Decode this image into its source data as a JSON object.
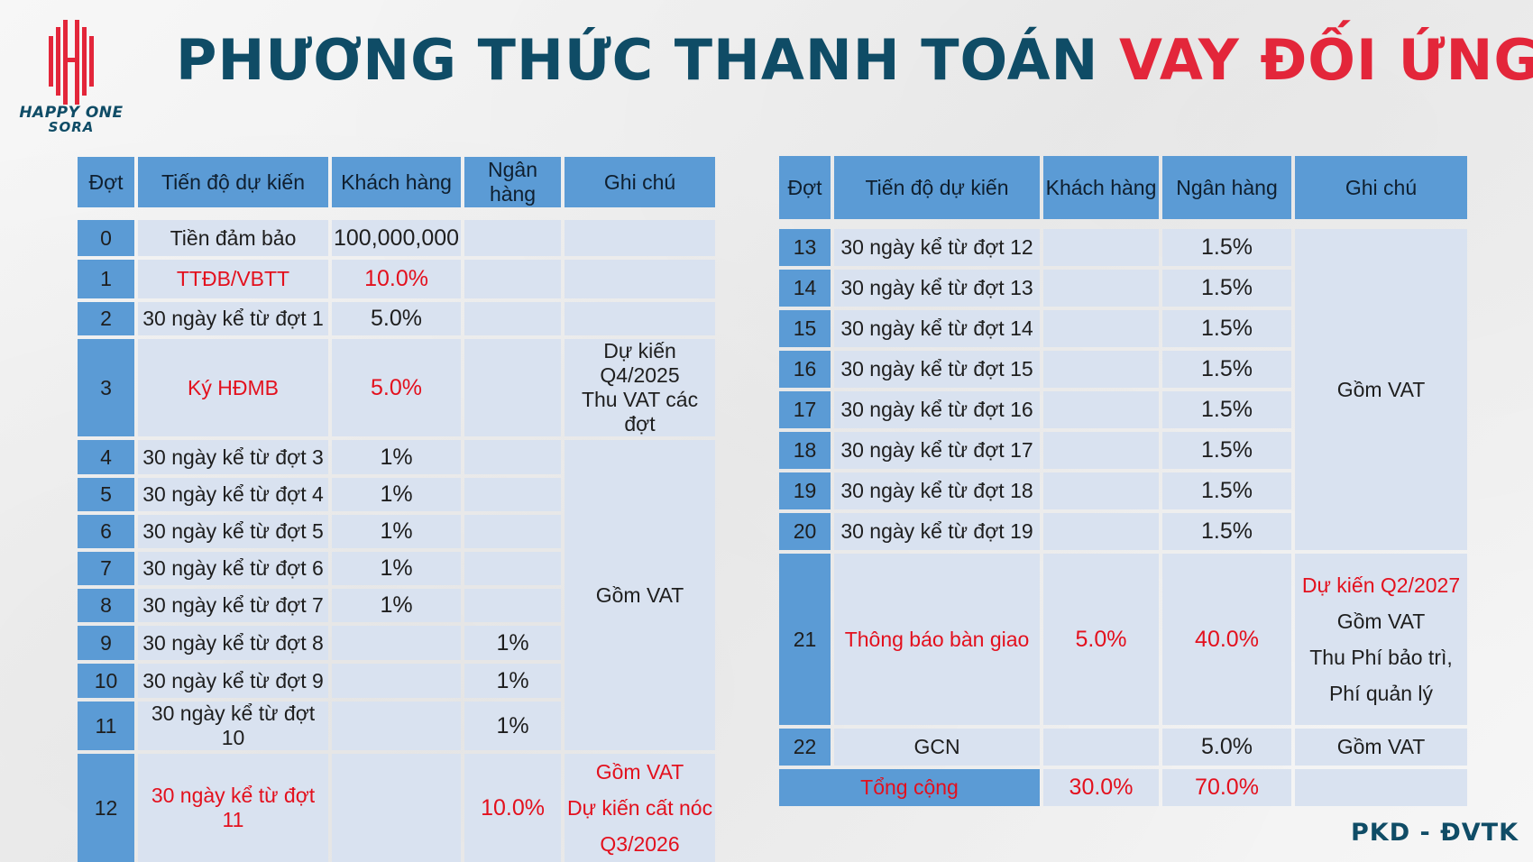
{
  "brand": {
    "name": "HAPPY ONE",
    "sub": "SORA",
    "accent": "#0f4c66",
    "red": "#e3263a"
  },
  "title": {
    "part1": "PHƯƠNG THỨC THANH TOÁN",
    "part2": "VAY ĐỐI ỨNG"
  },
  "headers": [
    "Đợt",
    "Tiến độ dự kiến",
    "Khách hàng",
    "Ngân hàng",
    "Ghi chú"
  ],
  "left": {
    "rows": [
      {
        "dot": "0",
        "tien_do": "Tiền đảm bảo",
        "khach_hang": "100,000,000",
        "ngan_hang": ""
      },
      {
        "dot": "1",
        "tien_do": "TTĐB/VBTT",
        "khach_hang": "10.0%",
        "ngan_hang": ""
      },
      {
        "dot": "2",
        "tien_do": "30 ngày kể từ đợt 1",
        "khach_hang": "5.0%",
        "ngan_hang": ""
      },
      {
        "dot": "3",
        "tien_do": "Ký HĐMB",
        "khach_hang": "5.0%",
        "ngan_hang": ""
      },
      {
        "dot": "4",
        "tien_do": "30 ngày kể từ đợt 3",
        "khach_hang": "1%",
        "ngan_hang": ""
      },
      {
        "dot": "5",
        "tien_do": "30 ngày kể từ đợt 4",
        "khach_hang": "1%",
        "ngan_hang": ""
      },
      {
        "dot": "6",
        "tien_do": "30 ngày kể từ đợt 5",
        "khach_hang": "1%",
        "ngan_hang": ""
      },
      {
        "dot": "7",
        "tien_do": "30 ngày kể từ đợt 6",
        "khach_hang": "1%",
        "ngan_hang": ""
      },
      {
        "dot": "8",
        "tien_do": "30 ngày kể từ đợt 7",
        "khach_hang": "1%",
        "ngan_hang": ""
      },
      {
        "dot": "9",
        "tien_do": "30 ngày kể từ đợt 8",
        "khach_hang": "",
        "ngan_hang": "1%"
      },
      {
        "dot": "10",
        "tien_do": "30 ngày kể từ đợt 9",
        "khach_hang": "",
        "ngan_hang": "1%"
      },
      {
        "dot": "11",
        "tien_do": "30 ngày kể từ đợt 10",
        "khach_hang": "",
        "ngan_hang": "1%"
      },
      {
        "dot": "12",
        "tien_do": "30 ngày kể từ đợt 11",
        "khach_hang": "",
        "ngan_hang": "10.0%"
      }
    ],
    "notes": {
      "q4_line1": "Dự kiến Q4/2025",
      "q4_line2": "Thu VAT các đợt",
      "gom_vat": "Gồm VAT",
      "r12_line1": "Gồm VAT",
      "r12_line2": "Dự kiến cất nóc",
      "r12_line3": "Q3/2026"
    }
  },
  "right": {
    "rows": [
      {
        "dot": "13",
        "tien_do": "30 ngày kể từ đợt 12",
        "khach_hang": "",
        "ngan_hang": "1.5%"
      },
      {
        "dot": "14",
        "tien_do": "30 ngày kể từ đợt 13",
        "khach_hang": "",
        "ngan_hang": "1.5%"
      },
      {
        "dot": "15",
        "tien_do": "30 ngày kể từ đợt 14",
        "khach_hang": "",
        "ngan_hang": "1.5%"
      },
      {
        "dot": "16",
        "tien_do": "30 ngày kể từ đợt 15",
        "khach_hang": "",
        "ngan_hang": "1.5%"
      },
      {
        "dot": "17",
        "tien_do": "30 ngày kể từ đợt 16",
        "khach_hang": "",
        "ngan_hang": "1.5%"
      },
      {
        "dot": "18",
        "tien_do": "30 ngày kể từ đợt 17",
        "khach_hang": "",
        "ngan_hang": "1.5%"
      },
      {
        "dot": "19",
        "tien_do": "30 ngày kể từ đợt 18",
        "khach_hang": "",
        "ngan_hang": "1.5%"
      },
      {
        "dot": "20",
        "tien_do": "30 ngày kể từ đợt 19",
        "khach_hang": "",
        "ngan_hang": "1.5%"
      },
      {
        "dot": "21",
        "tien_do": "Thông báo bàn giao",
        "khach_hang": "5.0%",
        "ngan_hang": "40.0%"
      },
      {
        "dot": "22",
        "tien_do": "GCN",
        "khach_hang": "",
        "ngan_hang": "5.0%"
      }
    ],
    "notes": {
      "gom_vat": "Gồm VAT",
      "r21_line1": "Dự kiến Q2/2027",
      "r21_line2": "Gồm VAT",
      "r21_line3": "Thu Phí bảo trì,",
      "r21_line4": "Phí quản lý",
      "r22": "Gồm VAT"
    },
    "total": {
      "label": "Tổng cộng",
      "khach_hang": "30.0%",
      "ngan_hang": "70.0%"
    }
  },
  "footer": "PKD - ĐVTK"
}
